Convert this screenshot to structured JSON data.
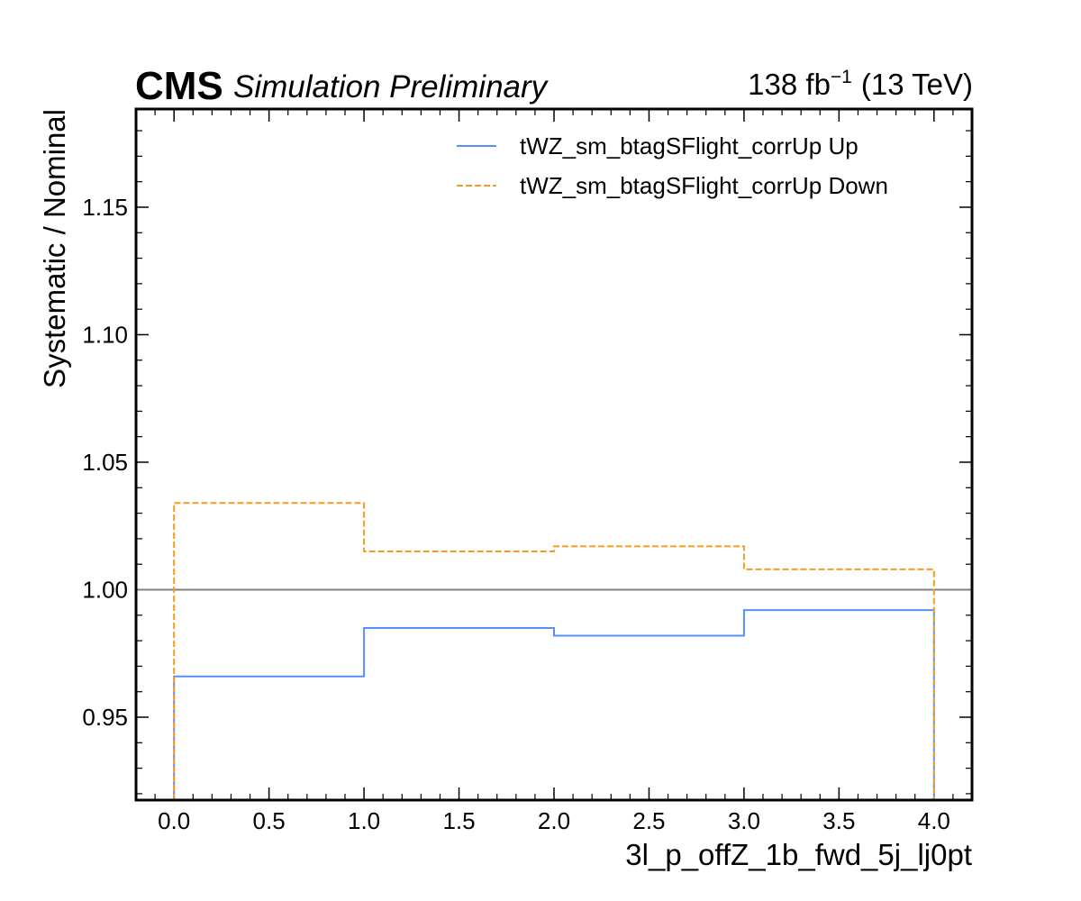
{
  "header": {
    "experiment": "CMS",
    "status": "Simulation Preliminary",
    "lumi_value": "138 fb",
    "lumi_exponent": "−1",
    "energy": "(13 TeV)"
  },
  "chart_data": {
    "type": "line",
    "step": true,
    "xlabel": "3l_p_offZ_1b_fwd_5j_lj0pt",
    "ylabel": "Systematic / Nominal",
    "xlim": [
      -0.2,
      4.2
    ],
    "ylim": [
      0.9175,
      1.1885
    ],
    "x_ticks": [
      0.0,
      0.5,
      1.0,
      1.5,
      2.0,
      2.5,
      3.0,
      3.5,
      4.0
    ],
    "x_tick_labels": [
      "0.0",
      "0.5",
      "1.0",
      "1.5",
      "2.0",
      "2.5",
      "3.0",
      "3.5",
      "4.0"
    ],
    "y_ticks": [
      0.95,
      1.0,
      1.05,
      1.1,
      1.15
    ],
    "y_tick_labels": [
      "0.95",
      "1.00",
      "1.05",
      "1.10",
      "1.15"
    ],
    "bin_edges": [
      0,
      1,
      2,
      3,
      4
    ],
    "reference_line": {
      "y": 1.0,
      "color": "#808080"
    },
    "legend_position": "top-right",
    "series": [
      {
        "name": "tWZ_sm_btagSFlight_corrUp Up",
        "color": "#5790fc",
        "dashed": false,
        "values": [
          0.966,
          0.985,
          0.982,
          0.992
        ]
      },
      {
        "name": "tWZ_sm_btagSFlight_corrUp Down",
        "color": "#f89c20",
        "dashed": true,
        "values": [
          1.034,
          1.015,
          1.017,
          1.008
        ]
      }
    ]
  }
}
